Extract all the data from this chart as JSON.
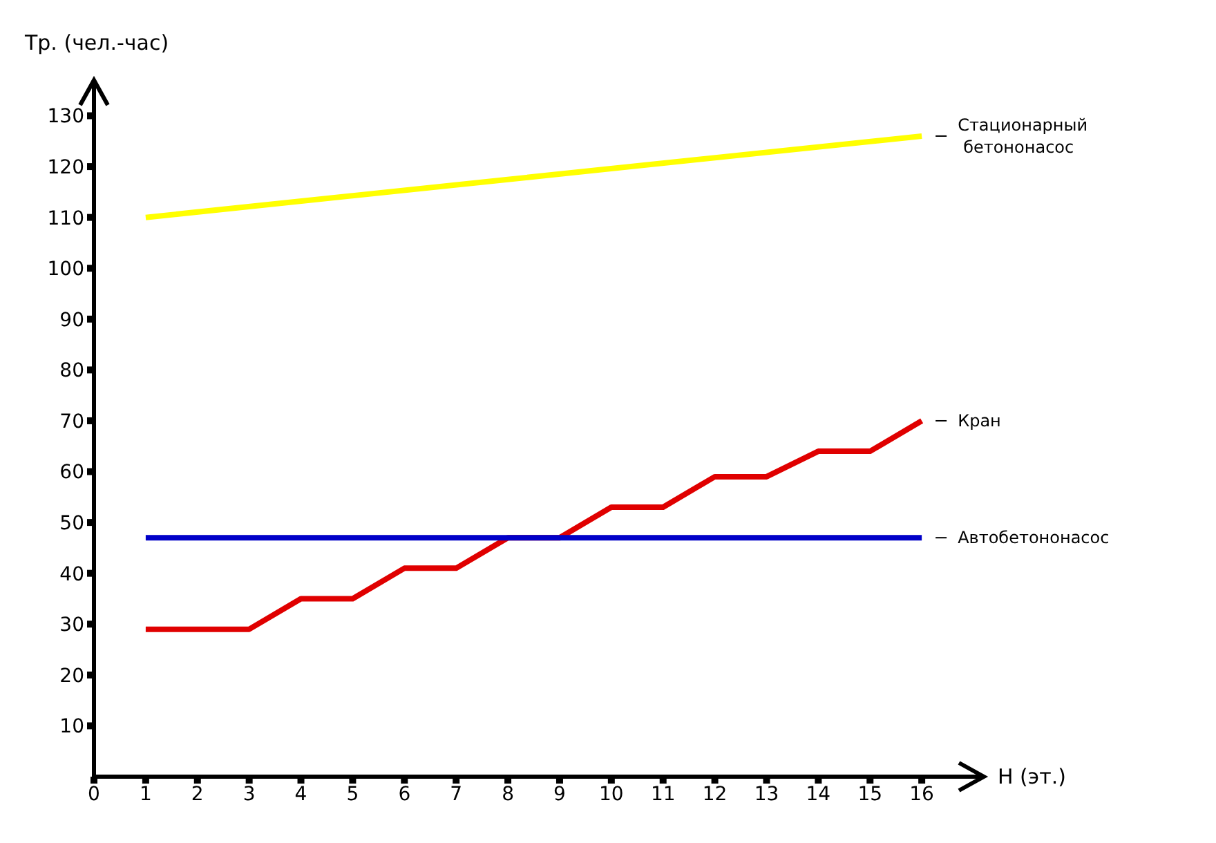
{
  "chart_data": {
    "type": "line",
    "xlabel": "Н (эт.)",
    "ylabel": "Тр. (чел.-час)",
    "xlim": [
      0,
      17.2
    ],
    "xticks": [
      0,
      1,
      2,
      3,
      4,
      5,
      6,
      7,
      8,
      9,
      10,
      11,
      12,
      13,
      14,
      15,
      16
    ],
    "ylim": [
      0,
      137
    ],
    "yticks": [
      10,
      20,
      30,
      40,
      50,
      60,
      70,
      80,
      90,
      100,
      110,
      120,
      130
    ],
    "grid": false,
    "legend": false,
    "marker": "none",
    "line_style": "solid",
    "series": [
      {
        "name": "Стационарный бетононасос",
        "color": "#ffff00",
        "x": [
          1,
          16
        ],
        "values": [
          110,
          126
        ]
      },
      {
        "name": "Кран",
        "color": "#e00000",
        "x": [
          1,
          2,
          3,
          4,
          5,
          6,
          7,
          8,
          9,
          10,
          11,
          12,
          13,
          14,
          15,
          16
        ],
        "values": [
          29,
          29,
          29,
          35,
          35,
          41,
          41,
          47,
          47,
          53,
          53,
          59,
          59,
          64,
          64,
          70
        ]
      },
      {
        "name": "Автобетононасос",
        "color": "#0000c8",
        "x": [
          1,
          16
        ],
        "values": [
          47,
          47
        ]
      }
    ]
  }
}
